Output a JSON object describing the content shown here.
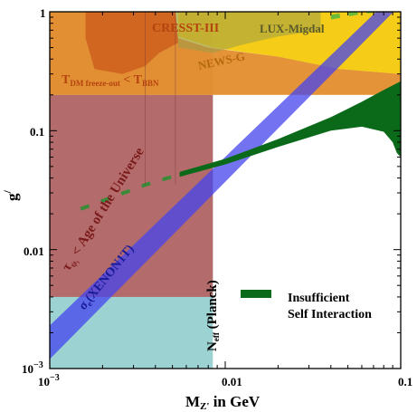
{
  "chart_data": {
    "type": "area",
    "xscale": "log",
    "yscale": "log",
    "xlim": [
      0.001,
      0.1
    ],
    "ylim": [
      0.001,
      1
    ],
    "xlabel": "M",
    "xlabel_sub": "Z'",
    "xlabel_rest": " in GeV",
    "ylabel": "g",
    "ylabel_sup": "/",
    "xticks": [
      {
        "value": 0.001,
        "base": "10",
        "exp": "−3"
      },
      {
        "value": 0.01,
        "label": "0.01"
      },
      {
        "value": 0.1,
        "label": "0.1"
      }
    ],
    "yticks": [
      {
        "value": 0.001,
        "base": "10",
        "exp": "−3"
      },
      {
        "value": 0.01,
        "label": "0.01"
      },
      {
        "value": 0.1,
        "label": "0.1"
      },
      {
        "value": 1,
        "label": "1"
      }
    ],
    "grid": false,
    "legend": {
      "position": "lower-right",
      "line1": "Insufficient",
      "line2": "Self Interaction",
      "color": "#0b6a1a"
    },
    "regions": [
      {
        "name": "age",
        "color": "#b46b6b",
        "x": [
          0.001,
          0.0085
        ],
        "y": [
          0.004,
          1
        ]
      },
      {
        "name": "neff",
        "color": "#9dd2d2",
        "x": [
          0.001,
          0.0085
        ],
        "y": [
          0.001,
          1
        ]
      },
      {
        "name": "freeze",
        "color": "#f2f28a",
        "x": [
          0.001,
          0.1
        ],
        "y": [
          0.2,
          1
        ]
      },
      {
        "name": "cresst",
        "color": "#e07a1f",
        "points": [
          [
            0.001,
            1
          ],
          [
            0.0052,
            1
          ],
          [
            0.0054,
            0.6
          ],
          [
            0.008,
            0.5
          ],
          [
            0.02,
            0.42
          ],
          [
            0.045,
            0.33
          ],
          [
            0.1,
            0.3
          ],
          [
            0.1,
            0.2
          ],
          [
            0.001,
            0.2
          ]
        ]
      },
      {
        "name": "news",
        "color": "#f5c400",
        "points": [
          [
            0.0054,
            1
          ],
          [
            0.1,
            1
          ],
          [
            0.1,
            0.3
          ],
          [
            0.045,
            0.33
          ],
          [
            0.02,
            0.42
          ],
          [
            0.0085,
            0.5
          ],
          [
            0.0054,
            0.62
          ]
        ]
      }
    ],
    "xenon_band": {
      "color": "#4444ee",
      "lower": [
        [
          0.001,
          0.0012
        ],
        [
          0.1,
          1.15
        ]
      ],
      "upper": [
        [
          0.001,
          0.0023
        ],
        [
          0.08,
          1.15
        ]
      ]
    },
    "sidm_band": {
      "color": "#0b6a1a",
      "lower": [
        [
          0.0055,
          0.041
        ],
        [
          0.01,
          0.052
        ],
        [
          0.02,
          0.073
        ],
        [
          0.04,
          0.1
        ],
        [
          0.06,
          0.108
        ],
        [
          0.08,
          0.098
        ],
        [
          0.09,
          0.08
        ],
        [
          0.095,
          0.065
        ],
        [
          0.1,
          0.06
        ]
      ],
      "upper": [
        [
          0.0055,
          0.045
        ],
        [
          0.01,
          0.058
        ],
        [
          0.02,
          0.085
        ],
        [
          0.04,
          0.13
        ],
        [
          0.06,
          0.175
        ],
        [
          0.08,
          0.22
        ],
        [
          0.1,
          0.26
        ]
      ],
      "dashed": [
        [
          0.0015,
          0.022
        ],
        [
          0.0035,
          0.035
        ],
        [
          0.0055,
          0.043
        ]
      ],
      "dashed_high": [
        [
          0.04,
          0.9
        ],
        [
          0.06,
          1.0
        ],
        [
          0.08,
          1.05
        ]
      ]
    },
    "labels": {
      "cresst": "CRESST-III",
      "lux": "LUX-Migdal",
      "news": "NEWS-G",
      "freeze_main": "T",
      "freeze_sub1": "DM freeze-out",
      "freeze_mid": " < T",
      "freeze_sub2": "BBN",
      "age_main": "τ",
      "age_sub": "ψ₁",
      "age_rest": " < Age of the Universe",
      "xenon_main": "σ",
      "xenon_sub": "e",
      "xenon_rest": "(XENON1T)",
      "neff_main": "N",
      "neff_sub": "eff",
      "neff_rest": " (Planck)"
    }
  }
}
